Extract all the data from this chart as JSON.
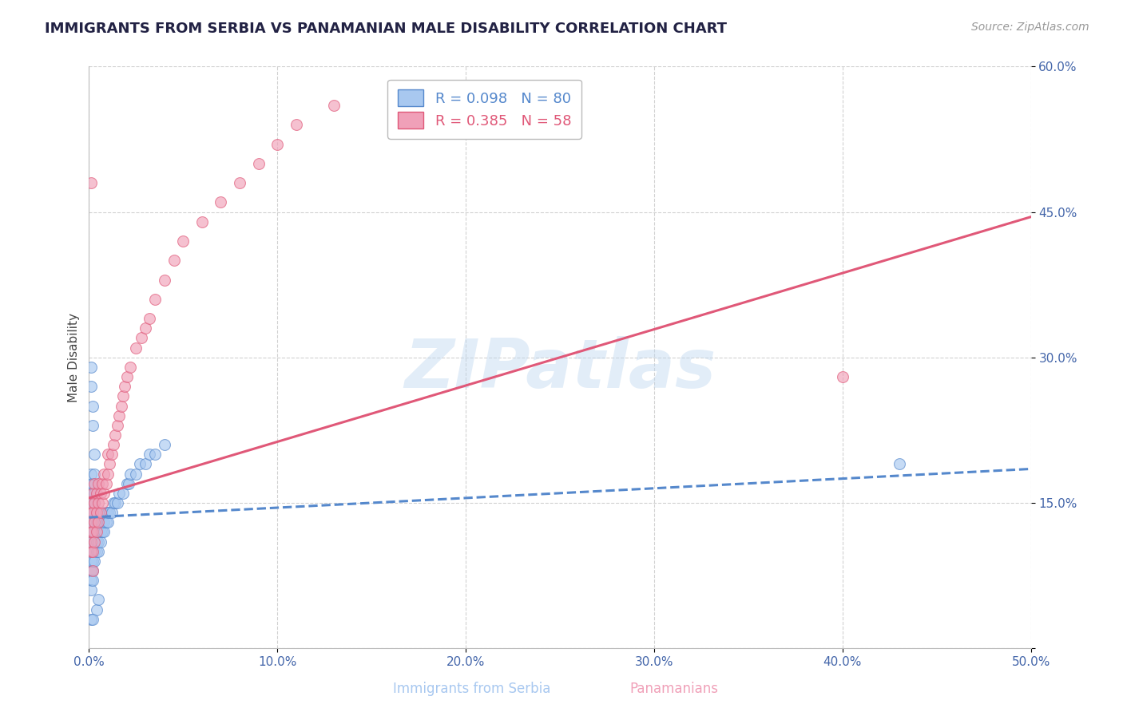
{
  "title": "IMMIGRANTS FROM SERBIA VS PANAMANIAN MALE DISABILITY CORRELATION CHART",
  "source": "Source: ZipAtlas.com",
  "ylabel": "Male Disability",
  "legend_label1": "Immigrants from Serbia",
  "legend_label2": "Panamanians",
  "r1": 0.098,
  "n1": 80,
  "r2": 0.385,
  "n2": 58,
  "xlim": [
    0.0,
    0.5
  ],
  "ylim": [
    0.0,
    0.6
  ],
  "xticks": [
    0.0,
    0.1,
    0.2,
    0.3,
    0.4,
    0.5
  ],
  "xtick_labels": [
    "0.0%",
    "10.0%",
    "20.0%",
    "30.0%",
    "40.0%",
    "50.0%"
  ],
  "yticks": [
    0.0,
    0.15,
    0.3,
    0.45,
    0.6
  ],
  "ytick_labels": [
    "",
    "15.0%",
    "30.0%",
    "45.0%",
    "60.0%"
  ],
  "color_blue": "#a8c8f0",
  "color_pink": "#f0a0b8",
  "trend_blue": "#5588cc",
  "trend_pink": "#e05878",
  "watermark": "ZIPatlas",
  "serbia_x": [
    0.001,
    0.001,
    0.001,
    0.001,
    0.001,
    0.001,
    0.001,
    0.001,
    0.001,
    0.001,
    0.001,
    0.001,
    0.001,
    0.002,
    0.002,
    0.002,
    0.002,
    0.002,
    0.002,
    0.002,
    0.002,
    0.002,
    0.002,
    0.002,
    0.003,
    0.003,
    0.003,
    0.003,
    0.003,
    0.003,
    0.003,
    0.003,
    0.004,
    0.004,
    0.004,
    0.004,
    0.004,
    0.005,
    0.005,
    0.005,
    0.005,
    0.006,
    0.006,
    0.006,
    0.007,
    0.007,
    0.007,
    0.008,
    0.008,
    0.009,
    0.009,
    0.01,
    0.01,
    0.011,
    0.012,
    0.013,
    0.014,
    0.015,
    0.016,
    0.018,
    0.02,
    0.021,
    0.022,
    0.025,
    0.027,
    0.03,
    0.032,
    0.035,
    0.04,
    0.001,
    0.001,
    0.002,
    0.002,
    0.003,
    0.003,
    0.004,
    0.005,
    0.001,
    0.002,
    0.43
  ],
  "serbia_y": [
    0.1,
    0.11,
    0.12,
    0.13,
    0.14,
    0.15,
    0.16,
    0.17,
    0.08,
    0.09,
    0.07,
    0.06,
    0.18,
    0.1,
    0.11,
    0.12,
    0.13,
    0.14,
    0.15,
    0.16,
    0.08,
    0.09,
    0.07,
    0.17,
    0.1,
    0.11,
    0.12,
    0.13,
    0.14,
    0.15,
    0.16,
    0.09,
    0.1,
    0.11,
    0.12,
    0.13,
    0.14,
    0.1,
    0.11,
    0.12,
    0.13,
    0.11,
    0.12,
    0.13,
    0.12,
    0.13,
    0.14,
    0.12,
    0.13,
    0.13,
    0.14,
    0.13,
    0.14,
    0.14,
    0.14,
    0.15,
    0.15,
    0.15,
    0.16,
    0.16,
    0.17,
    0.17,
    0.18,
    0.18,
    0.19,
    0.19,
    0.2,
    0.2,
    0.21,
    0.29,
    0.27,
    0.25,
    0.23,
    0.2,
    0.18,
    0.04,
    0.05,
    0.03,
    0.03,
    0.19
  ],
  "panama_x": [
    0.001,
    0.001,
    0.001,
    0.001,
    0.001,
    0.001,
    0.002,
    0.002,
    0.002,
    0.002,
    0.002,
    0.003,
    0.003,
    0.003,
    0.003,
    0.004,
    0.004,
    0.004,
    0.005,
    0.005,
    0.005,
    0.006,
    0.006,
    0.007,
    0.007,
    0.008,
    0.008,
    0.009,
    0.01,
    0.01,
    0.011,
    0.012,
    0.013,
    0.014,
    0.015,
    0.016,
    0.017,
    0.018,
    0.019,
    0.02,
    0.022,
    0.025,
    0.028,
    0.03,
    0.032,
    0.035,
    0.04,
    0.045,
    0.05,
    0.06,
    0.07,
    0.08,
    0.09,
    0.1,
    0.11,
    0.13,
    0.4,
    0.001
  ],
  "panama_y": [
    0.1,
    0.11,
    0.12,
    0.13,
    0.14,
    0.15,
    0.1,
    0.12,
    0.14,
    0.16,
    0.08,
    0.11,
    0.13,
    0.15,
    0.17,
    0.12,
    0.14,
    0.16,
    0.13,
    0.15,
    0.17,
    0.14,
    0.16,
    0.15,
    0.17,
    0.16,
    0.18,
    0.17,
    0.18,
    0.2,
    0.19,
    0.2,
    0.21,
    0.22,
    0.23,
    0.24,
    0.25,
    0.26,
    0.27,
    0.28,
    0.29,
    0.31,
    0.32,
    0.33,
    0.34,
    0.36,
    0.38,
    0.4,
    0.42,
    0.44,
    0.46,
    0.48,
    0.5,
    0.52,
    0.54,
    0.56,
    0.28,
    0.48
  ],
  "trend_pink_x0": 0.0,
  "trend_pink_y0": 0.155,
  "trend_pink_x1": 0.5,
  "trend_pink_y1": 0.445,
  "trend_blue_x0": 0.0,
  "trend_blue_y0": 0.135,
  "trend_blue_x1": 0.5,
  "trend_blue_y1": 0.185
}
